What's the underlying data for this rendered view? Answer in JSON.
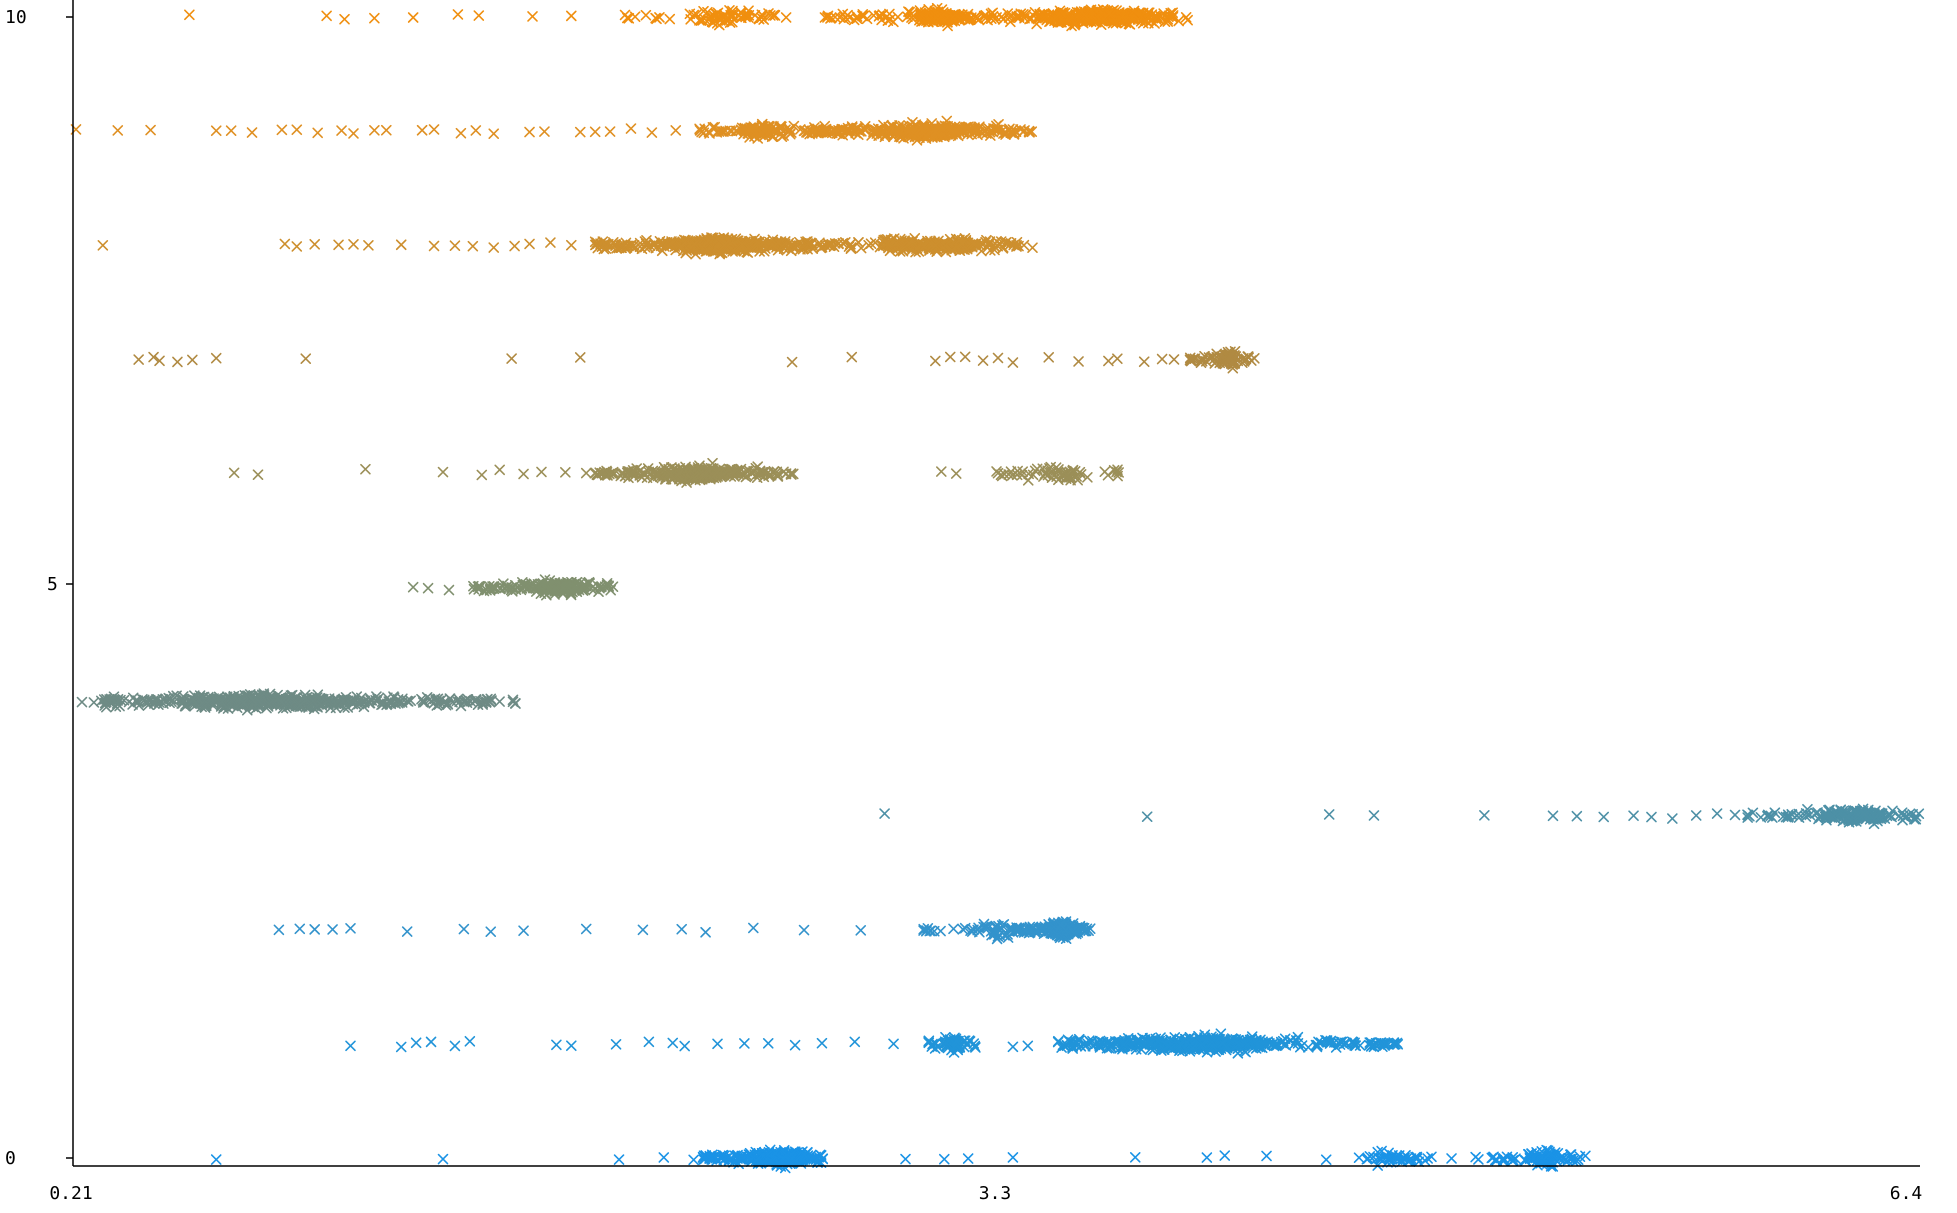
{
  "chart_data": {
    "type": "scatter",
    "title": "",
    "xlabel": "",
    "ylabel": "",
    "xlim": [
      0.21,
      6.4
    ],
    "ylim": [
      0,
      10
    ],
    "marker": "x",
    "grid": false,
    "legend": "none",
    "x_ticks": [
      {
        "value": 0.21,
        "label": "0.21"
      },
      {
        "value": 3.3,
        "label": "3.3"
      },
      {
        "value": 6.4,
        "label": "6.4"
      }
    ],
    "y_ticks": [
      {
        "value": 0,
        "label": "0"
      },
      {
        "value": 5,
        "label": "5"
      },
      {
        "value": 10,
        "label": "10"
      }
    ],
    "series": [
      {
        "y": 0,
        "color": "#1a93e6",
        "sparse": [
          0.69,
          1.45,
          2.04,
          2.19,
          2.29,
          2.35,
          2.45,
          2.55,
          2.61,
          3.0,
          3.13,
          3.21,
          3.36,
          3.77,
          4.01,
          4.07,
          4.21,
          4.41,
          4.52,
          4.61,
          4.75,
          4.83,
          4.92
        ],
        "clusters": [
          {
            "from": 2.32,
            "to": 2.73,
            "n": 280,
            "center": 2.58
          },
          {
            "from": 4.48,
            "to": 4.78,
            "n": 40,
            "center": 4.62
          },
          {
            "from": 4.91,
            "to": 5.28,
            "n": 90,
            "center": 5.15
          }
        ]
      },
      {
        "y": 1,
        "color": "#2194d9",
        "sparse": [
          1.14,
          1.31,
          1.36,
          1.41,
          1.49,
          1.54,
          1.83,
          1.88,
          2.03,
          2.14,
          2.22,
          2.26,
          2.37,
          2.46,
          2.54,
          2.63,
          2.72,
          2.83,
          2.96,
          3.36,
          3.41
        ],
        "clusters": [
          {
            "from": 3.07,
            "to": 3.24,
            "n": 70,
            "center": 3.16
          },
          {
            "from": 3.5,
            "to": 4.66,
            "n": 480,
            "center": 4.0
          }
        ]
      },
      {
        "y": 2,
        "color": "#3393cc",
        "sparse": [
          0.9,
          0.97,
          1.02,
          1.08,
          1.14,
          1.33,
          1.52,
          1.61,
          1.72,
          1.93,
          2.12,
          2.25,
          2.33,
          2.49,
          2.66,
          2.85
        ],
        "clusters": [
          {
            "from": 3.06,
            "to": 3.4,
            "n": 50,
            "center": 3.3
          },
          {
            "from": 3.37,
            "to": 3.62,
            "n": 220,
            "center": 3.52
          }
        ]
      },
      {
        "y": 3,
        "color": "#4d90a6",
        "sparse": [
          2.93,
          3.81,
          4.42,
          4.57,
          4.94,
          5.17,
          5.25,
          5.34,
          5.44,
          5.5,
          5.57,
          5.65,
          5.72,
          5.78,
          5.84,
          5.9,
          5.96
        ],
        "clusters": [
          {
            "from": 5.82,
            "to": 6.4,
            "n": 160,
            "center": 6.2
          }
        ]
      },
      {
        "y": 4,
        "color": "#6e8b85",
        "sparse": [
          0.24,
          0.28,
          0.35,
          0.42
        ],
        "clusters": [
          {
            "from": 0.3,
            "to": 1.7,
            "n": 520,
            "center": 0.85
          }
        ]
      },
      {
        "y": 5,
        "color": "#80906f",
        "sparse": [
          1.35,
          1.4,
          1.47
        ],
        "clusters": [
          {
            "from": 1.55,
            "to": 2.02,
            "n": 190,
            "center": 1.85
          }
        ]
      },
      {
        "y": 6,
        "color": "#9b8f58",
        "sparse": [
          0.75,
          0.83,
          1.19,
          1.45,
          1.58,
          1.64,
          1.72,
          1.78,
          1.86,
          1.93,
          2.0,
          2.09,
          3.12,
          3.17,
          3.32,
          3.39
        ],
        "clusters": [
          {
            "from": 1.95,
            "to": 2.63,
            "n": 320,
            "center": 2.32
          },
          {
            "from": 3.3,
            "to": 3.72,
            "n": 60,
            "center": 3.54
          }
        ]
      },
      {
        "y": 7,
        "color": "#b08a42",
        "sparse": [
          0.43,
          0.48,
          0.5,
          0.56,
          0.61,
          0.69,
          0.99,
          1.68,
          1.91,
          2.62,
          2.82,
          3.1,
          3.15,
          3.2,
          3.26,
          3.31,
          3.36,
          3.48,
          3.58,
          3.68,
          3.71,
          3.8,
          3.86,
          3.9,
          3.97
        ],
        "clusters": [
          {
            "from": 3.95,
            "to": 4.18,
            "n": 80,
            "center": 4.08
          }
        ]
      },
      {
        "y": 8,
        "color": "#cd8f2e",
        "sparse": [
          0.31,
          0.92,
          0.96,
          1.02,
          1.1,
          1.15,
          1.2,
          1.31,
          1.42,
          1.49,
          1.55,
          1.62,
          1.69,
          1.74,
          1.81,
          1.88,
          1.96,
          2.04
        ],
        "clusters": [
          {
            "from": 1.96,
            "to": 2.72,
            "n": 440,
            "center": 2.38
          },
          {
            "from": 2.66,
            "to": 3.43,
            "n": 260,
            "center": 3.1
          }
        ]
      },
      {
        "y": 9,
        "color": "#df9023",
        "sparse": [
          0.22,
          0.36,
          0.47,
          0.69,
          0.74,
          0.81,
          0.91,
          0.96,
          1.03,
          1.11,
          1.15,
          1.22,
          1.26,
          1.38,
          1.42,
          1.51,
          1.56,
          1.62,
          1.74,
          1.79,
          1.91,
          1.96,
          2.01,
          2.08,
          2.15,
          2.23,
          2.31,
          2.39
        ],
        "clusters": [
          {
            "from": 2.3,
            "to": 2.78,
            "n": 120,
            "center": 2.52
          },
          {
            "from": 2.65,
            "to": 3.43,
            "n": 360,
            "center": 3.1
          }
        ]
      },
      {
        "y": 10,
        "color": "#f08f0f",
        "sparse": [
          0.6,
          1.06,
          1.12,
          1.22,
          1.35,
          1.5,
          1.57,
          1.75,
          1.88,
          2.06,
          2.13,
          2.21,
          2.28,
          2.37,
          2.45,
          2.52,
          2.6,
          2.73,
          2.79,
          2.86,
          2.92,
          3.02
        ],
        "clusters": [
          {
            "from": 2.06,
            "to": 2.62,
            "n": 70,
            "center": 2.38
          },
          {
            "from": 2.73,
            "to": 3.29,
            "n": 120,
            "center": 3.1
          },
          {
            "from": 3.1,
            "to": 3.95,
            "n": 380,
            "center": 3.65
          }
        ]
      }
    ]
  }
}
